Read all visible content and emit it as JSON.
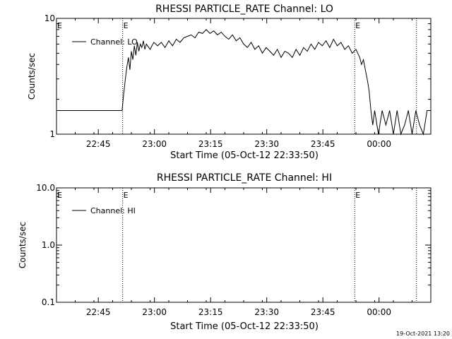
{
  "chart_data": [
    {
      "type": "line",
      "title": "RHESSI PARTICLE_RATE Channel: LO",
      "xlabel": "Start Time (05-Oct-12 22:33:50)",
      "ylabel": "Counts/sec",
      "yscale": "log",
      "ylim": [
        1,
        10
      ],
      "xlim": [
        "22:33:50",
        "00:13:50"
      ],
      "xticks": [
        "22:45",
        "23:00",
        "23:15",
        "23:30",
        "23:45",
        "00:00"
      ],
      "yticks": [
        "1",
        "10"
      ],
      "legend": "top-left",
      "event_markers": [
        {
          "time": "22:51:30",
          "label": "E"
        },
        {
          "time": "23:53:30",
          "label": "E"
        },
        {
          "time": "00:10:00",
          "label": ""
        }
      ],
      "series": [
        {
          "name": "Channel: LO",
          "x_minutes_after_start": [
            0,
            17.5,
            18,
            18.4,
            18.8,
            19.2,
            19.6,
            20,
            20.4,
            20.8,
            21.2,
            21.6,
            22,
            22.4,
            22.8,
            23.2,
            23.6,
            24,
            25,
            26,
            27,
            28,
            29,
            30,
            31,
            32,
            33,
            34,
            35,
            36,
            37,
            38,
            39,
            40,
            41,
            42,
            43,
            44,
            45,
            46,
            47,
            48,
            49,
            50,
            51,
            52,
            53,
            54,
            55,
            56,
            57,
            58,
            59,
            60,
            61,
            62,
            63,
            64,
            65,
            66,
            67,
            68,
            69,
            70,
            71,
            72,
            73,
            74,
            75,
            76,
            77,
            78,
            79,
            80,
            81,
            81.5,
            82,
            82.5,
            83,
            83.5,
            84,
            84.5,
            85,
            86,
            87,
            88,
            89,
            90,
            91,
            92,
            93,
            94,
            95,
            96,
            97,
            98,
            99,
            100
          ],
          "values": [
            1.6,
            1.6,
            2.3,
            3,
            3.8,
            4.6,
            3.6,
            5.2,
            4.4,
            5.8,
            4.8,
            6.2,
            5.2,
            6,
            5.6,
            6.4,
            5.4,
            6,
            5.4,
            6.2,
            5.8,
            6.2,
            5.6,
            6.4,
            5.8,
            6.6,
            6.2,
            6.8,
            7,
            7.2,
            6.8,
            7.6,
            7.4,
            8,
            7.4,
            7.8,
            7.2,
            7.6,
            7,
            6.6,
            7.2,
            6.4,
            6.8,
            6,
            5.6,
            6.2,
            5.4,
            5.8,
            5,
            5.6,
            5.2,
            4.8,
            5.4,
            4.6,
            5.2,
            5,
            4.6,
            5.4,
            4.8,
            5.6,
            5.2,
            6,
            5.4,
            6.2,
            5.8,
            6.4,
            5.6,
            6.6,
            5.8,
            6.2,
            5.4,
            5.8,
            5,
            5.4,
            4.6,
            4,
            4.4,
            3.6,
            3,
            2.4,
            1.6,
            1.2,
            1.6,
            1,
            1.6,
            1.2,
            1.6,
            1,
            1.6,
            1,
            1.2,
            1.6,
            1,
            1.6,
            1.2,
            1,
            1.6,
            1.6
          ]
        }
      ]
    },
    {
      "type": "line",
      "title": "RHESSI PARTICLE_RATE Channel: HI",
      "xlabel": "Start Time (05-Oct-12 22:33:50)",
      "ylabel": "Counts/sec",
      "yscale": "log",
      "ylim": [
        0.1,
        10
      ],
      "xlim": [
        "22:33:50",
        "00:13:50"
      ],
      "xticks": [
        "22:45",
        "23:00",
        "23:15",
        "23:30",
        "23:45",
        "00:00"
      ],
      "yticks": [
        "0.1",
        "1.0",
        "10.0"
      ],
      "legend": "top-left",
      "event_markers": [
        {
          "time": "22:51:30",
          "label": "E"
        },
        {
          "time": "23:53:30",
          "label": "E"
        },
        {
          "time": "00:10:00",
          "label": ""
        }
      ],
      "series": [
        {
          "name": "Channel: HI",
          "x_minutes_after_start": [],
          "values": []
        }
      ]
    }
  ],
  "footer": {
    "timestamp": "19-Oct-2021 13:20"
  }
}
